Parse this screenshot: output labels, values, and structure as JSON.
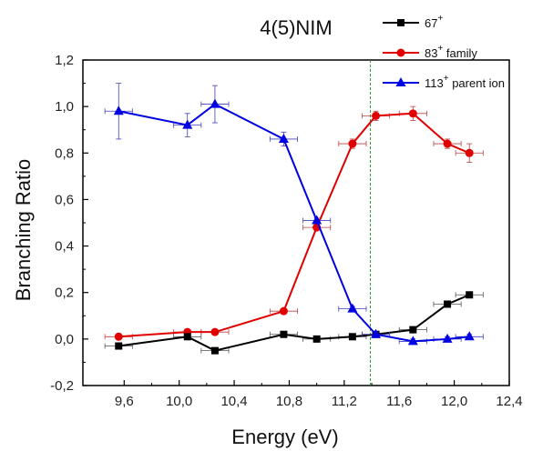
{
  "chart_data": {
    "type": "line",
    "title": "4(5)NIM",
    "xlabel": "Energy (eV)",
    "ylabel": "Branching Ratio",
    "xlim": [
      9.3,
      12.4
    ],
    "ylim": [
      -0.2,
      1.2
    ],
    "xticks": [
      "9,6",
      "10,0",
      "10,4",
      "10,8",
      "11,2",
      "11,6",
      "12,0",
      "12,4"
    ],
    "xtick_values": [
      9.6,
      10.0,
      10.4,
      10.8,
      11.2,
      11.6,
      12.0,
      12.4
    ],
    "yticks": [
      "-0,2",
      "0,0",
      "0,2",
      "0,4",
      "0,6",
      "0,8",
      "1,0",
      "1,2"
    ],
    "ytick_values": [
      -0.2,
      0.0,
      0.2,
      0.4,
      0.6,
      0.8,
      1.0,
      1.2
    ],
    "reference_line_x": 11.39,
    "legend_position": "top-right",
    "series": [
      {
        "name": "67",
        "name_sup": "+",
        "color": "#000000",
        "marker": "square",
        "x": [
          9.56,
          10.06,
          10.26,
          10.76,
          11.0,
          11.26,
          11.43,
          11.7,
          11.95,
          12.11
        ],
        "y": [
          -0.03,
          0.01,
          -0.05,
          0.02,
          0.0,
          0.01,
          0.02,
          0.04,
          0.15,
          0.19
        ],
        "xerr": [
          0.1,
          0.1,
          0.1,
          0.1,
          0.1,
          0.1,
          0.1,
          0.1,
          0.1,
          0.1
        ],
        "yerr": [
          0.01,
          0.01,
          0.01,
          0.01,
          0.01,
          0.01,
          0.01,
          0.01,
          0.01,
          0.01
        ]
      },
      {
        "name": "83",
        "name_sup": "+",
        "name_suffix": " family",
        "color": "#e00000",
        "marker": "circle",
        "x": [
          9.56,
          10.06,
          10.26,
          10.76,
          11.0,
          11.26,
          11.43,
          11.7,
          11.95,
          12.11
        ],
        "y": [
          0.01,
          0.03,
          0.03,
          0.12,
          0.48,
          0.84,
          0.96,
          0.97,
          0.84,
          0.8
        ],
        "xerr": [
          0.1,
          0.1,
          0.1,
          0.1,
          0.1,
          0.1,
          0.1,
          0.1,
          0.1,
          0.1
        ],
        "yerr": [
          0.01,
          0.01,
          0.01,
          0.01,
          0.01,
          0.02,
          0.02,
          0.03,
          0.02,
          0.04
        ]
      },
      {
        "name": "113",
        "name_sup": "+",
        "name_suffix": " parent ion",
        "color": "#0000e0",
        "marker": "triangle",
        "x": [
          9.56,
          10.06,
          10.26,
          10.76,
          11.0,
          11.26,
          11.43,
          11.7,
          11.95,
          12.11
        ],
        "y": [
          0.98,
          0.92,
          1.01,
          0.86,
          0.51,
          0.13,
          0.02,
          -0.01,
          0.0,
          0.01
        ],
        "xerr": [
          0.1,
          0.1,
          0.1,
          0.1,
          0.1,
          0.1,
          0.1,
          0.1,
          0.1,
          0.1
        ],
        "yerr": [
          0.12,
          0.05,
          0.08,
          0.03,
          0.01,
          0.01,
          0.01,
          0.01,
          0.01,
          0.01
        ]
      }
    ]
  }
}
